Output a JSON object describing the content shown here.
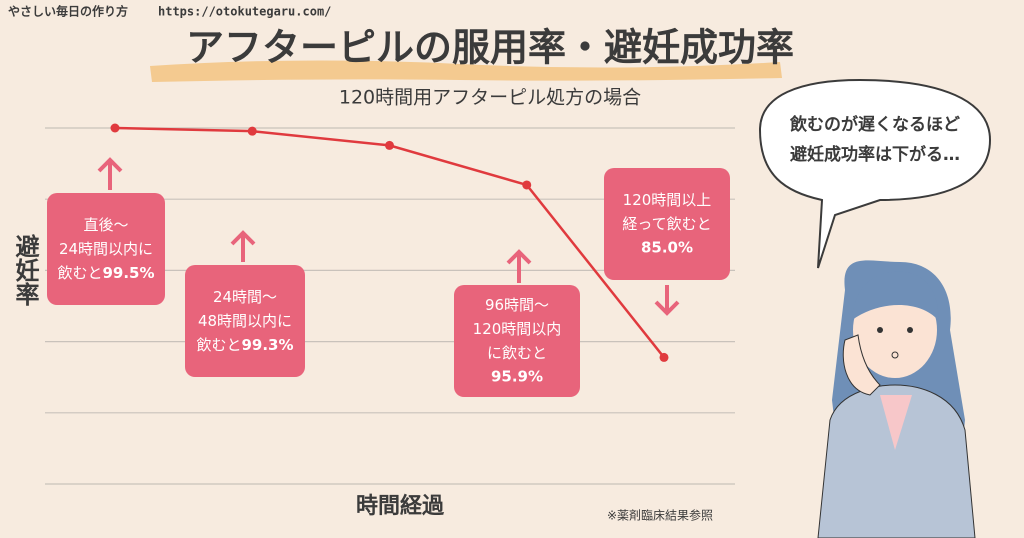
{
  "chart_data": {
    "type": "line",
    "site": "やさしい毎日の作り方",
    "url": "https://otokutegaru.com/",
    "title": "アフターピルの服用率・避妊成功率",
    "subtitle": "120時間用アフターピル処方の場合",
    "ylabel": "避妊率",
    "xlabel": "時間経過",
    "note": "※薬剤臨床結果参照",
    "speech": [
      "飲むのが遅くなるほど",
      "避妊成功率は下がる…"
    ],
    "categories": [
      null,
      null,
      null,
      null,
      null
    ],
    "series": [
      {
        "name": null,
        "color": "#e03a3e",
        "values": [
          99.5,
          99.3,
          98.4,
          95.9,
          85.0
        ]
      }
    ],
    "value_labels": [
      "99.5%",
      "99.3%",
      null,
      "95.9%",
      "85.0%"
    ],
    "annotations": [
      {
        "lines": [
          "直後〜",
          "24時間以内に",
          "飲むと"
        ]
      },
      {
        "lines": [
          "24時間〜",
          "48時間以内に",
          "飲むと"
        ]
      },
      null,
      {
        "lines": [
          "96時間〜",
          "120時間以内",
          "に飲むと"
        ]
      },
      {
        "lines": [
          "120時間以上",
          "経って飲むと"
        ]
      }
    ],
    "ylim": [
      77,
      99.5
    ],
    "grid_values": [
      99.5,
      95,
      90.5,
      86,
      81.5,
      77
    ],
    "grid": true
  }
}
